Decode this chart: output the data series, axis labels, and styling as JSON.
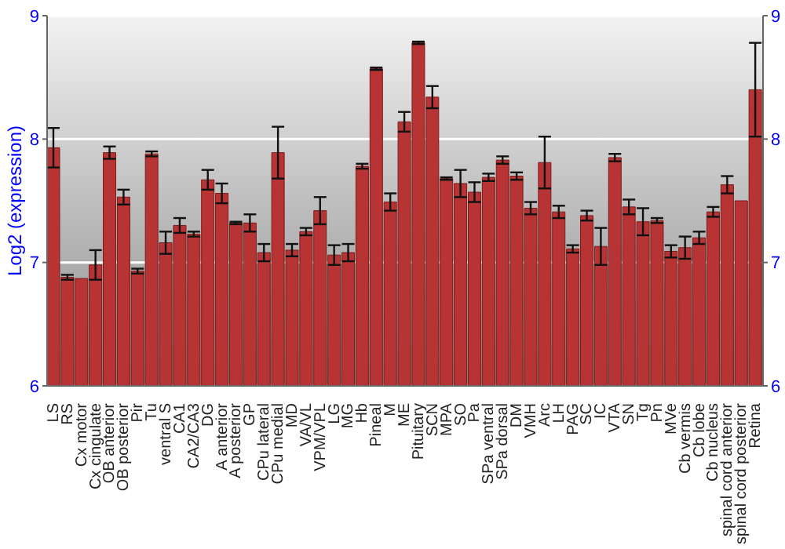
{
  "chart_data": {
    "type": "bar",
    "ylabel": "Log2 (expression)",
    "categories": [
      "LS",
      "RS",
      "Cx motor",
      "Cx cingulate",
      "OB anterior",
      "OB posterior",
      "Pir",
      "Tu",
      "ventral S",
      "CA1",
      "CA2/CA3",
      "DG",
      "A anterior",
      "A posterior",
      "GP",
      "CPu lateral",
      "CPu medial",
      "MD",
      "VA/VL",
      "VPM/VPL",
      "LG",
      "MG",
      "Hb",
      "Pineal",
      "M",
      "ME",
      "Pituitary",
      "SCN",
      "MPA",
      "SO",
      "Pa",
      "SPa ventral",
      "SPa dorsal",
      "DM",
      "VMH",
      "Arc",
      "LH",
      "PAG",
      "SC",
      "IC",
      "VTA",
      "SN",
      "Tg",
      "Pn",
      "MVe",
      "Cb vermis",
      "Cb lobe",
      "Cb nucleus",
      "spinal cord anterior",
      "spinal cord posterior",
      "Retina"
    ],
    "values": [
      7.93,
      6.88,
      6.87,
      6.98,
      7.89,
      7.53,
      6.93,
      7.88,
      7.16,
      7.3,
      7.23,
      7.67,
      7.56,
      7.32,
      7.32,
      7.08,
      7.89,
      7.1,
      7.25,
      7.42,
      7.06,
      7.08,
      7.78,
      8.57,
      7.49,
      8.14,
      8.78,
      8.34,
      7.68,
      7.64,
      7.57,
      7.69,
      7.83,
      7.7,
      7.44,
      7.81,
      7.41,
      7.11,
      7.38,
      7.13,
      7.85,
      7.45,
      7.33,
      7.34,
      7.09,
      7.12,
      7.2,
      7.41,
      7.63,
      7.5,
      8.4
    ],
    "errors": [
      0.16,
      0.02,
      null,
      0.12,
      0.05,
      0.06,
      0.02,
      0.02,
      0.09,
      0.06,
      0.02,
      0.08,
      0.08,
      0.01,
      0.07,
      0.07,
      0.21,
      0.05,
      0.03,
      0.11,
      0.08,
      0.07,
      0.02,
      0.01,
      0.07,
      0.08,
      0.01,
      0.09,
      0.01,
      0.11,
      0.08,
      0.03,
      0.03,
      0.03,
      0.05,
      0.21,
      0.05,
      0.03,
      0.04,
      0.15,
      0.03,
      0.06,
      0.11,
      0.02,
      0.05,
      0.09,
      0.05,
      0.04,
      0.07,
      null,
      0.38
    ],
    "color": "#b83434",
    "ylim": [
      6,
      9
    ],
    "yticks": [
      6,
      7,
      8,
      9
    ],
    "y2lim": [
      6,
      9
    ],
    "y2ticks": [
      6,
      7,
      8,
      9
    ],
    "grid": "y"
  }
}
